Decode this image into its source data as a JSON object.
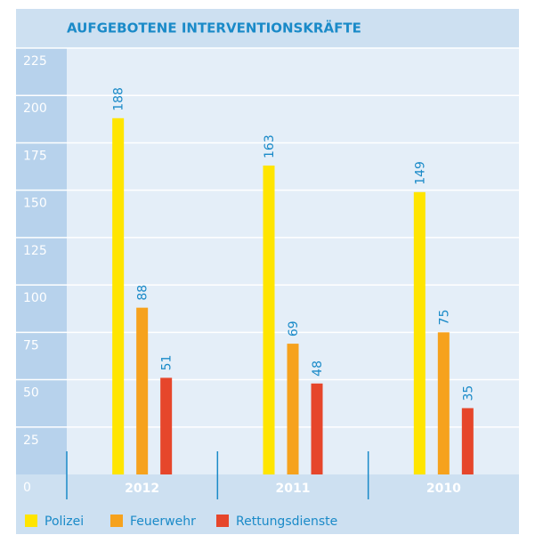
{
  "chart_data": {
    "type": "bar",
    "title": "AUFGEBOTENE INTERVENTIONSKRÄFTE",
    "categories": [
      "2012",
      "2011",
      "2010"
    ],
    "series": [
      {
        "name": "Polizei",
        "color": "#ffe500",
        "values": [
          188,
          163,
          149
        ]
      },
      {
        "name": "Feuerwehr",
        "color": "#f6a21d",
        "values": [
          88,
          69,
          75
        ]
      },
      {
        "name": "Rettungsdienste",
        "color": "#e6462b",
        "values": [
          51,
          48,
          35
        ]
      }
    ],
    "ylim": [
      0,
      225
    ],
    "yticks": [
      0,
      25,
      50,
      75,
      100,
      125,
      150,
      175,
      200,
      225
    ],
    "grid": true
  }
}
